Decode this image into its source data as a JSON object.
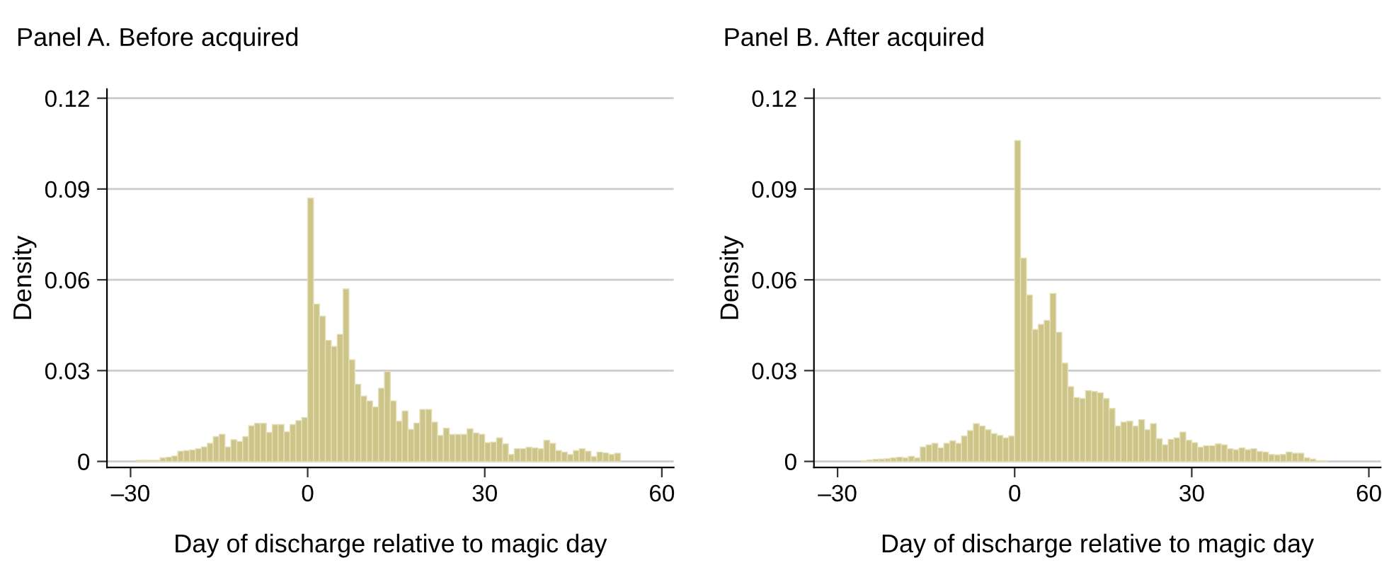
{
  "chart_data": [
    {
      "type": "histogram",
      "title": "Panel A. Before acquired",
      "xlabel": "Day of discharge relative to magic day",
      "ylabel": "Density",
      "color": "#cdc48a",
      "bins": [
        -29,
        -28,
        -27,
        -26,
        -25,
        -24,
        -23,
        -22,
        -21,
        -20,
        -19,
        -18,
        -17,
        -16,
        -15,
        -14,
        -13,
        -12,
        -11,
        -10,
        -9,
        -8,
        -7,
        -6,
        -5,
        -4,
        -3,
        -2,
        -1,
        0,
        1,
        2,
        3,
        4,
        5,
        6,
        7,
        8,
        9,
        10,
        11,
        12,
        13,
        14,
        15,
        16,
        17,
        18,
        19,
        20,
        21,
        22,
        23,
        24,
        25,
        26,
        27,
        28,
        29,
        30,
        31,
        32,
        33,
        34,
        35,
        36,
        37,
        38,
        39,
        40,
        41,
        42,
        43,
        44,
        45,
        46,
        47,
        48,
        49,
        50,
        51,
        52,
        53
      ],
      "values": [
        0.0004,
        0.0004,
        0.0004,
        0.0004,
        0.0012,
        0.0014,
        0.0018,
        0.0034,
        0.0036,
        0.0038,
        0.0042,
        0.0048,
        0.006,
        0.0082,
        0.009,
        0.0048,
        0.0072,
        0.0066,
        0.0082,
        0.0118,
        0.0126,
        0.0126,
        0.0096,
        0.0122,
        0.0122,
        0.0098,
        0.0122,
        0.0135,
        0.0145,
        0.087,
        0.052,
        0.048,
        0.04,
        0.038,
        0.042,
        0.057,
        0.0336,
        0.0255,
        0.0216,
        0.02,
        0.018,
        0.0242,
        0.0297,
        0.02,
        0.0133,
        0.0167,
        0.0106,
        0.0127,
        0.0172,
        0.0172,
        0.013,
        0.0086,
        0.011,
        0.0089,
        0.0089,
        0.0089,
        0.0108,
        0.0094,
        0.009,
        0.0062,
        0.0064,
        0.0078,
        0.0058,
        0.0023,
        0.0042,
        0.0042,
        0.0047,
        0.0045,
        0.0042,
        0.007,
        0.006,
        0.0036,
        0.0031,
        0.0023,
        0.0036,
        0.0042,
        0.0034,
        0.0016,
        0.0031,
        0.0028,
        0.0023,
        0.0027
      ],
      "xlim": [
        -34,
        62
      ],
      "ylim": [
        -0.002,
        0.123
      ],
      "xticks": [
        {
          "value": -30,
          "label": "–30"
        },
        0,
        30,
        60
      ],
      "yticks": [
        0,
        0.03,
        0.06,
        0.09,
        0.12
      ],
      "grid": "y"
    },
    {
      "type": "histogram",
      "title": "Panel B. After acquired",
      "xlabel": "Day of discharge relative to magic day",
      "ylabel": "Density",
      "color": "#cdc48a",
      "bins": [
        -26,
        -25,
        -24,
        -23,
        -22,
        -21,
        -20,
        -19,
        -18,
        -17,
        -16,
        -15,
        -14,
        -13,
        -12,
        -11,
        -10,
        -9,
        -8,
        -7,
        -6,
        -5,
        -4,
        -3,
        -2,
        -1,
        0,
        1,
        2,
        3,
        4,
        5,
        6,
        7,
        8,
        9,
        10,
        11,
        12,
        13,
        14,
        15,
        16,
        17,
        18,
        19,
        20,
        21,
        22,
        23,
        24,
        25,
        26,
        27,
        28,
        29,
        30,
        31,
        32,
        33,
        34,
        35,
        36,
        37,
        38,
        39,
        40,
        41,
        42,
        43,
        44,
        45,
        46,
        47,
        48,
        49,
        50,
        51,
        52,
        53
      ],
      "values": [
        0.0003,
        0.0005,
        0.0007,
        0.0008,
        0.0009,
        0.0012,
        0.0014,
        0.0012,
        0.0017,
        0.0012,
        0.0048,
        0.0055,
        0.006,
        0.0045,
        0.006,
        0.0068,
        0.006,
        0.0084,
        0.0102,
        0.0125,
        0.0117,
        0.0105,
        0.0092,
        0.0086,
        0.0078,
        0.0084,
        0.106,
        0.0672,
        0.055,
        0.0436,
        0.0453,
        0.0466,
        0.0555,
        0.0427,
        0.0325,
        0.0247,
        0.0211,
        0.0208,
        0.0234,
        0.0231,
        0.0227,
        0.0208,
        0.0175,
        0.0117,
        0.013,
        0.0133,
        0.0117,
        0.0138,
        0.0105,
        0.0125,
        0.0075,
        0.0055,
        0.0073,
        0.0078,
        0.0097,
        0.007,
        0.0062,
        0.0047,
        0.0052,
        0.0052,
        0.0058,
        0.0055,
        0.0042,
        0.0039,
        0.0045,
        0.0039,
        0.0042,
        0.0033,
        0.0031,
        0.0023,
        0.0022,
        0.0023,
        0.0031,
        0.0027,
        0.0027,
        0.0012,
        0.0008,
        0.0003,
        0.0003
      ],
      "xlim": [
        -34,
        62
      ],
      "ylim": [
        -0.002,
        0.123
      ],
      "xticks": [
        {
          "value": -30,
          "label": "–30"
        },
        0,
        30,
        60
      ],
      "yticks": [
        0,
        0.03,
        0.06,
        0.09,
        0.12
      ],
      "grid": "y"
    }
  ]
}
